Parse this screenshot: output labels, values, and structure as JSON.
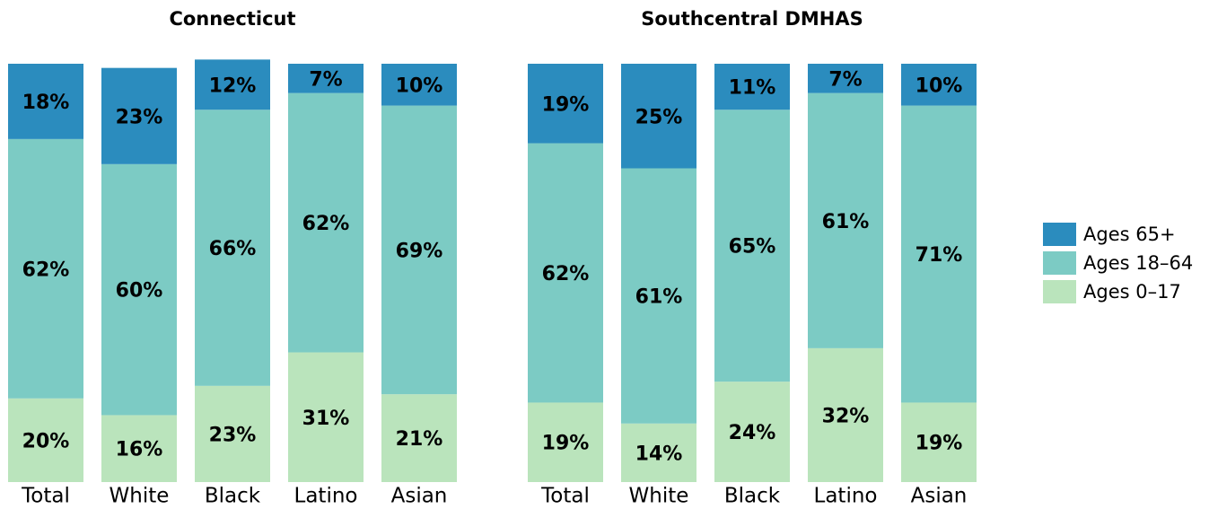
{
  "chart_data": [
    {
      "type": "stacked_bar",
      "title": "Connecticut",
      "categories": [
        "Total",
        "White",
        "Black",
        "Latino",
        "Asian"
      ],
      "ylim": [
        0,
        100
      ],
      "series": [
        {
          "name": "Ages 0–17",
          "color": "#bae4bc",
          "values": [
            20,
            16,
            23,
            31,
            21
          ],
          "value_labels": [
            "20%",
            "16%",
            "23%",
            "31%",
            "21%"
          ]
        },
        {
          "name": "Ages 18–64",
          "color": "#7ccbc4",
          "values": [
            62,
            60,
            66,
            62,
            69
          ],
          "value_labels": [
            "62%",
            "60%",
            "66%",
            "62%",
            "69%"
          ]
        },
        {
          "name": "Ages 65+",
          "color": "#2b8cbe",
          "values": [
            18,
            23,
            12,
            7,
            10
          ],
          "value_labels": [
            "18%",
            "23%",
            "12%",
            "7%",
            "10%"
          ]
        }
      ]
    },
    {
      "type": "stacked_bar",
      "title": "Southcentral DMHAS",
      "categories": [
        "Total",
        "White",
        "Black",
        "Latino",
        "Asian"
      ],
      "ylim": [
        0,
        100
      ],
      "series": [
        {
          "name": "Ages 0–17",
          "color": "#bae4bc",
          "values": [
            19,
            14,
            24,
            32,
            19
          ],
          "value_labels": [
            "19%",
            "14%",
            "24%",
            "32%",
            "19%"
          ]
        },
        {
          "name": "Ages 18–64",
          "color": "#7ccbc4",
          "values": [
            62,
            61,
            65,
            61,
            71
          ],
          "value_labels": [
            "62%",
            "61%",
            "65%",
            "61%",
            "71%"
          ]
        },
        {
          "name": "Ages 65+",
          "color": "#2b8cbe",
          "values": [
            19,
            25,
            11,
            7,
            10
          ],
          "value_labels": [
            "19%",
            "25%",
            "11%",
            "7%",
            "10%"
          ]
        }
      ]
    }
  ]
}
